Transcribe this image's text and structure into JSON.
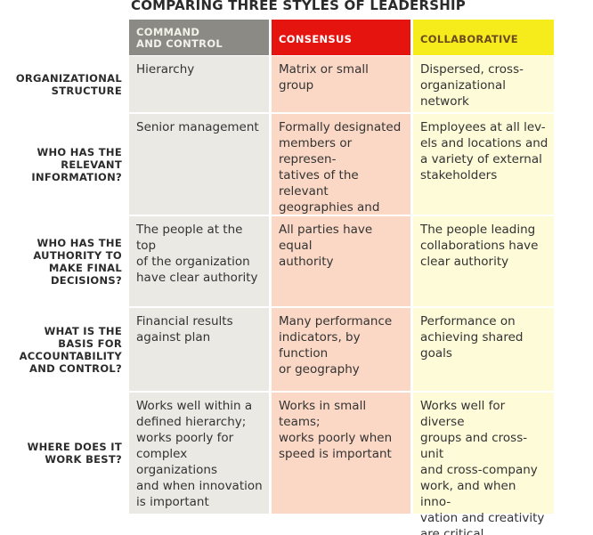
{
  "title": "COMPARING THREE STYLES OF LEADERSHIP",
  "table": {
    "columns": [
      "COMMAND\nAND CONTROL",
      "CONSENSUS",
      "COLLABORATIVE"
    ],
    "rows": [
      [
        "ORGANIZATIONAL\nSTRUCTURE",
        "Hierarchy",
        "Matrix or small group",
        "Dispersed, cross-\norganizational\nnetwork"
      ],
      [
        "WHO HAS THE\nRELEVANT\nINFORMATION?",
        "Senior management",
        "Formally designated\nmembers or represen-\ntatives of the relevant\ngeographies and\ndisciplines",
        "Employees at all lev-\nels and locations and\na variety of external\nstakeholders"
      ],
      [
        "WHO HAS THE\nAUTHORITY TO\nMAKE FINAL\nDECISIONS?",
        "The people at the top\nof the organization\nhave clear authority",
        "All parties have equal\nauthority",
        "The people leading\ncollaborations have\nclear authority"
      ],
      [
        "WHAT IS THE\nBASIS FOR\nACCOUNTABILITY\nAND CONTROL?",
        "Financial results\nagainst plan",
        "Many performance\nindicators, by function\nor geography",
        "Performance on\nachieving shared\ngoals"
      ],
      [
        "WHERE DOES IT\nWORK BEST?",
        "Works well within a\ndefined hierarchy;\nworks poorly for\ncomplex organizations\nand when innovation\nis important",
        "Works in small teams;\nworks poorly when\nspeed is important",
        "Works well for diverse\ngroups and cross-unit\nand cross-company\nwork, and when inno-\nvation and creativity\nare critical"
      ]
    ]
  }
}
